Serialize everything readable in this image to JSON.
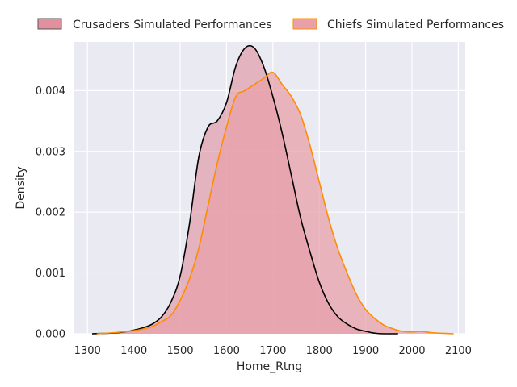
{
  "chart_data": {
    "type": "area",
    "title": "",
    "xlabel": "Home_Rtng",
    "ylabel": "Density",
    "xlim": [
      1270,
      2115
    ],
    "ylim": [
      0,
      0.0048
    ],
    "xticks": [
      1300,
      1400,
      1500,
      1600,
      1700,
      1800,
      1900,
      2000,
      2100
    ],
    "yticks": [
      0.0,
      0.001,
      0.002,
      0.003,
      0.004
    ],
    "ytick_labels": [
      "0.000",
      "0.001",
      "0.002",
      "0.003",
      "0.004"
    ],
    "grid": true,
    "legend_position": "top",
    "series": [
      {
        "name": "Crusaders Simulated Performances",
        "fill": "#dc7c8c",
        "line": "#000000",
        "x": [
          1310,
          1350,
          1380,
          1400,
          1420,
          1440,
          1460,
          1480,
          1500,
          1520,
          1540,
          1560,
          1580,
          1600,
          1620,
          1640,
          1660,
          1680,
          1700,
          1720,
          1740,
          1760,
          1780,
          1800,
          1820,
          1840,
          1860,
          1880,
          1900,
          1920,
          1940,
          1970
        ],
        "y": [
          0.0,
          1e-05,
          3e-05,
          6e-05,
          0.0001,
          0.00016,
          0.00028,
          0.00052,
          0.00095,
          0.0018,
          0.0029,
          0.0034,
          0.0035,
          0.0038,
          0.0044,
          0.0047,
          0.0047,
          0.0044,
          0.0039,
          0.0033,
          0.0026,
          0.0019,
          0.00135,
          0.00085,
          0.0005,
          0.00028,
          0.00016,
          8e-05,
          4e-05,
          1e-05,
          0.0,
          0.0
        ]
      },
      {
        "name": "Chiefs Simulated Performances",
        "fill": "#e8a0aa",
        "line": "#ff8c00",
        "x": [
          1320,
          1360,
          1400,
          1420,
          1440,
          1460,
          1480,
          1500,
          1520,
          1540,
          1560,
          1580,
          1600,
          1620,
          1640,
          1660,
          1680,
          1700,
          1720,
          1740,
          1760,
          1780,
          1800,
          1820,
          1840,
          1860,
          1880,
          1900,
          1920,
          1940,
          1960,
          1980,
          2000,
          2020,
          2040,
          2060,
          2090
        ],
        "y": [
          0.0,
          2e-05,
          5e-05,
          8e-05,
          0.00012,
          0.0002,
          0.0003,
          0.00055,
          0.0009,
          0.0014,
          0.0021,
          0.0028,
          0.0034,
          0.0039,
          0.004,
          0.0041,
          0.0042,
          0.0043,
          0.0041,
          0.0039,
          0.0036,
          0.0031,
          0.0025,
          0.0019,
          0.0014,
          0.001,
          0.00065,
          0.0004,
          0.00025,
          0.00014,
          8e-05,
          4e-05,
          3e-05,
          4e-05,
          2e-05,
          1e-05,
          0.0
        ]
      }
    ]
  }
}
